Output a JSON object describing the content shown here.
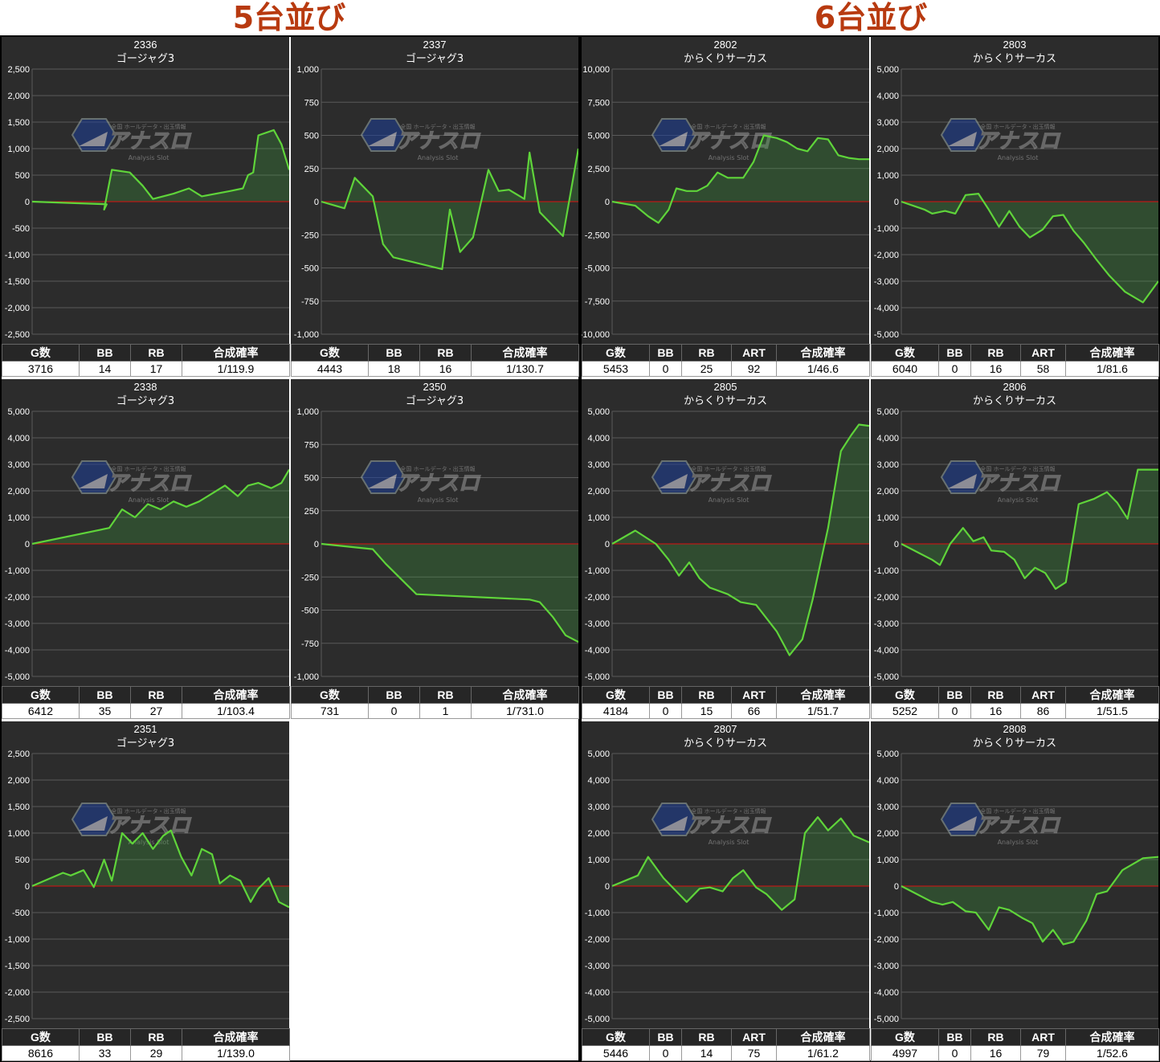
{
  "sections": [
    {
      "title": "5台並び"
    },
    {
      "title": "6台並び"
    }
  ],
  "watermark": {
    "brand": "アナスロ",
    "sub": "Analysis Slot",
    "top": "全国 ホールデータ・出玉情報"
  },
  "colors": {
    "line": "#5fd43a",
    "fill": "rgba(60,160,60,0.28)",
    "zero": "#dd1111",
    "panel": "#2c2c2c",
    "grid": "#5a5a5a",
    "header": "#262626"
  },
  "stat_headers": {
    "g": "G数",
    "bb": "BB",
    "rb": "RB",
    "art": "ART",
    "rate": "合成確率"
  },
  "chart_data": [
    {
      "type": "area",
      "id": "2336",
      "title": "2336",
      "subtitle": "ゴージャグ3",
      "ylim": [
        -2500,
        2500
      ],
      "yticks": [
        2500,
        2000,
        1500,
        1000,
        500,
        0,
        -500,
        -1000,
        -1500,
        -2000,
        -2500
      ],
      "y": [
        0,
        -50,
        -150,
        600,
        550,
        300,
        50,
        150,
        250,
        100,
        200,
        250,
        500,
        550,
        1250,
        1350,
        1080,
        600
      ],
      "x": [
        0,
        0.29,
        0.28,
        0.31,
        0.38,
        0.43,
        0.47,
        0.55,
        0.61,
        0.66,
        0.77,
        0.82,
        0.84,
        0.86,
        0.88,
        0.94,
        0.97,
        1.0
      ],
      "stats": {
        "g": "3716",
        "bb": "14",
        "rb": "17",
        "art": null,
        "rate": "1/119.9"
      }
    },
    {
      "type": "area",
      "id": "2337",
      "title": "2337",
      "subtitle": "ゴージャグ3",
      "ylim": [
        -1000,
        1000
      ],
      "yticks": [
        1000,
        750,
        500,
        250,
        0,
        -250,
        -500,
        -750,
        -1000
      ],
      "y": [
        0,
        -50,
        180,
        40,
        -320,
        -420,
        -510,
        -60,
        -380,
        -270,
        240,
        80,
        90,
        20,
        370,
        -80,
        -160,
        -260,
        400
      ],
      "x": [
        0,
        0.09,
        0.13,
        0.2,
        0.24,
        0.28,
        0.47,
        0.5,
        0.54,
        0.59,
        0.65,
        0.69,
        0.73,
        0.79,
        0.81,
        0.85,
        0.89,
        0.94,
        1.0
      ],
      "stats": {
        "g": "4443",
        "bb": "18",
        "rb": "16",
        "art": null,
        "rate": "1/130.7"
      }
    },
    {
      "type": "area",
      "id": "2338",
      "title": "2338",
      "subtitle": "ゴージャグ3",
      "ylim": [
        -5000,
        5000
      ],
      "yticks": [
        5000,
        4000,
        3000,
        2000,
        1000,
        0,
        -1000,
        -2000,
        -3000,
        -4000,
        -5000
      ],
      "y": [
        0,
        600,
        1300,
        1000,
        1500,
        1300,
        1600,
        1400,
        1600,
        1900,
        2200,
        1800,
        2200,
        2300,
        2100,
        2300,
        2800
      ],
      "x": [
        0,
        0.3,
        0.35,
        0.4,
        0.45,
        0.5,
        0.55,
        0.6,
        0.65,
        0.7,
        0.75,
        0.8,
        0.84,
        0.88,
        0.93,
        0.97,
        1.0
      ],
      "stats": {
        "g": "6412",
        "bb": "35",
        "rb": "27",
        "art": null,
        "rate": "1/103.4"
      }
    },
    {
      "type": "area",
      "id": "2350",
      "title": "2350",
      "subtitle": "ゴージャグ3",
      "ylim": [
        -1000,
        1000
      ],
      "yticks": [
        1000,
        750,
        500,
        250,
        0,
        -250,
        -500,
        -750,
        -1000
      ],
      "y": [
        0,
        -40,
        -150,
        -380,
        -420,
        -440,
        -550,
        -690,
        -740
      ],
      "x": [
        0,
        0.2,
        0.25,
        0.37,
        0.81,
        0.85,
        0.9,
        0.95,
        1.0
      ],
      "stats": {
        "g": "731",
        "bb": "0",
        "rb": "1",
        "art": null,
        "rate": "1/731.0"
      }
    },
    {
      "type": "area",
      "id": "2351",
      "title": "2351",
      "subtitle": "ゴージャグ3",
      "ylim": [
        -2500,
        2500
      ],
      "yticks": [
        2500,
        2000,
        1500,
        1000,
        500,
        0,
        -500,
        -1000,
        -1500,
        -2000,
        -2500
      ],
      "y": [
        0,
        250,
        200,
        300,
        -20,
        500,
        100,
        1000,
        800,
        1000,
        700,
        950,
        1050,
        550,
        200,
        700,
        600,
        50,
        200,
        100,
        -300,
        -50,
        150,
        -300,
        -400
      ],
      "x": [
        0,
        0.12,
        0.15,
        0.2,
        0.24,
        0.28,
        0.31,
        0.35,
        0.39,
        0.43,
        0.47,
        0.51,
        0.54,
        0.58,
        0.62,
        0.66,
        0.7,
        0.73,
        0.77,
        0.81,
        0.85,
        0.88,
        0.92,
        0.96,
        1.0
      ],
      "stats": {
        "g": "8616",
        "bb": "33",
        "rb": "29",
        "art": null,
        "rate": "1/139.0"
      }
    },
    {
      "type": "area",
      "id": "2802",
      "title": "2802",
      "subtitle": "からくりサーカス",
      "ylim": [
        -10000,
        10000
      ],
      "yticks": [
        10000,
        7500,
        5000,
        2500,
        0,
        -2500,
        -5000,
        -7500,
        -10000
      ],
      "y": [
        0,
        -300,
        -1100,
        -1600,
        -600,
        1000,
        800,
        800,
        1200,
        2200,
        1800,
        1800,
        3000,
        5000,
        4800,
        4500,
        4000,
        3800,
        4800,
        4700,
        3500,
        3300,
        3200,
        3200
      ],
      "x": [
        0,
        0.09,
        0.14,
        0.18,
        0.22,
        0.25,
        0.29,
        0.33,
        0.37,
        0.41,
        0.45,
        0.51,
        0.55,
        0.59,
        0.64,
        0.68,
        0.72,
        0.76,
        0.8,
        0.84,
        0.88,
        0.92,
        0.96,
        1.0
      ],
      "stats": {
        "g": "5453",
        "bb": "0",
        "rb": "25",
        "art": "92",
        "rate": "1/46.6"
      }
    },
    {
      "type": "area",
      "id": "2803",
      "title": "2803",
      "subtitle": "からくりサーカス",
      "ylim": [
        -5000,
        5000
      ],
      "yticks": [
        5000,
        4000,
        3000,
        2000,
        1000,
        0,
        -1000,
        -2000,
        -3000,
        -4000,
        -5000
      ],
      "y": [
        0,
        -300,
        -450,
        -350,
        -450,
        250,
        300,
        -300,
        -950,
        -350,
        -950,
        -1350,
        -1050,
        -550,
        -500,
        -1100,
        -1550,
        -2200,
        -2800,
        -3400,
        -3800,
        -3000
      ],
      "x": [
        0,
        0.09,
        0.12,
        0.17,
        0.21,
        0.25,
        0.3,
        0.34,
        0.38,
        0.42,
        0.46,
        0.5,
        0.55,
        0.59,
        0.63,
        0.67,
        0.71,
        0.76,
        0.81,
        0.87,
        0.94,
        1.0
      ],
      "stats": {
        "g": "6040",
        "bb": "0",
        "rb": "16",
        "art": "58",
        "rate": "1/81.6"
      }
    },
    {
      "type": "area",
      "id": "2805",
      "title": "2805",
      "subtitle": "からくりサーカス",
      "ylim": [
        -5000,
        5000
      ],
      "yticks": [
        5000,
        4000,
        3000,
        2000,
        1000,
        0,
        -1000,
        -2000,
        -3000,
        -4000,
        -5000
      ],
      "y": [
        0,
        500,
        0,
        -600,
        -1200,
        -700,
        -1300,
        -1650,
        -1900,
        -2200,
        -2300,
        -3300,
        -4200,
        -3600,
        -2100,
        600,
        3500,
        4100,
        4500,
        4450
      ],
      "x": [
        0,
        0.09,
        0.17,
        0.22,
        0.26,
        0.3,
        0.34,
        0.38,
        0.45,
        0.5,
        0.56,
        0.64,
        0.69,
        0.74,
        0.78,
        0.84,
        0.89,
        0.93,
        0.96,
        1.0
      ],
      "stats": {
        "g": "4184",
        "bb": "0",
        "rb": "15",
        "art": "66",
        "rate": "1/51.7"
      }
    },
    {
      "type": "area",
      "id": "2806",
      "title": "2806",
      "subtitle": "からくりサーカス",
      "ylim": [
        -5000,
        5000
      ],
      "yticks": [
        5000,
        4000,
        3000,
        2000,
        1000,
        0,
        -1000,
        -2000,
        -3000,
        -4000,
        -5000
      ],
      "y": [
        0,
        -600,
        -800,
        0,
        600,
        100,
        250,
        -250,
        -300,
        -600,
        -1300,
        -900,
        -1100,
        -1700,
        -1450,
        1500,
        1700,
        1950,
        1550,
        950,
        2800,
        2800,
        2800
      ],
      "x": [
        0,
        0.12,
        0.15,
        0.19,
        0.24,
        0.28,
        0.32,
        0.35,
        0.4,
        0.44,
        0.48,
        0.52,
        0.56,
        0.6,
        0.64,
        0.69,
        0.75,
        0.8,
        0.84,
        0.88,
        0.92,
        0.96,
        1.0
      ],
      "stats": {
        "g": "5252",
        "bb": "0",
        "rb": "16",
        "art": "86",
        "rate": "1/51.5"
      }
    },
    {
      "type": "area",
      "id": "2807",
      "title": "2807",
      "subtitle": "からくりサーカス",
      "ylim": [
        -5000,
        5000
      ],
      "yticks": [
        5000,
        4000,
        3000,
        2000,
        1000,
        0,
        -1000,
        -2000,
        -3000,
        -4000,
        -5000
      ],
      "y": [
        0,
        400,
        1100,
        300,
        -200,
        -600,
        -100,
        -50,
        -200,
        300,
        600,
        -50,
        -300,
        -900,
        -500,
        2000,
        2600,
        2100,
        2550,
        1900,
        1650
      ],
      "x": [
        0,
        0.1,
        0.14,
        0.2,
        0.25,
        0.29,
        0.34,
        0.38,
        0.43,
        0.47,
        0.51,
        0.56,
        0.6,
        0.66,
        0.71,
        0.75,
        0.8,
        0.84,
        0.89,
        0.94,
        1.0
      ],
      "stats": {
        "g": "5446",
        "bb": "0",
        "rb": "14",
        "art": "75",
        "rate": "1/61.2"
      }
    },
    {
      "type": "area",
      "id": "2808",
      "title": "2808",
      "subtitle": "からくりサーカス",
      "ylim": [
        -5000,
        5000
      ],
      "yticks": [
        5000,
        4000,
        3000,
        2000,
        1000,
        0,
        -1000,
        -2000,
        -3000,
        -4000,
        -5000
      ],
      "y": [
        0,
        -600,
        -700,
        -600,
        -950,
        -1000,
        -1650,
        -800,
        -900,
        -1200,
        -1400,
        -2100,
        -1650,
        -2200,
        -2100,
        -1300,
        -300,
        -200,
        600,
        1050,
        1100
      ],
      "x": [
        0,
        0.12,
        0.16,
        0.2,
        0.25,
        0.29,
        0.34,
        0.38,
        0.42,
        0.47,
        0.51,
        0.55,
        0.59,
        0.63,
        0.67,
        0.72,
        0.76,
        0.8,
        0.86,
        0.94,
        1.0
      ],
      "stats": {
        "g": "4997",
        "bb": "0",
        "rb": "16",
        "art": "79",
        "rate": "1/52.6"
      }
    }
  ]
}
